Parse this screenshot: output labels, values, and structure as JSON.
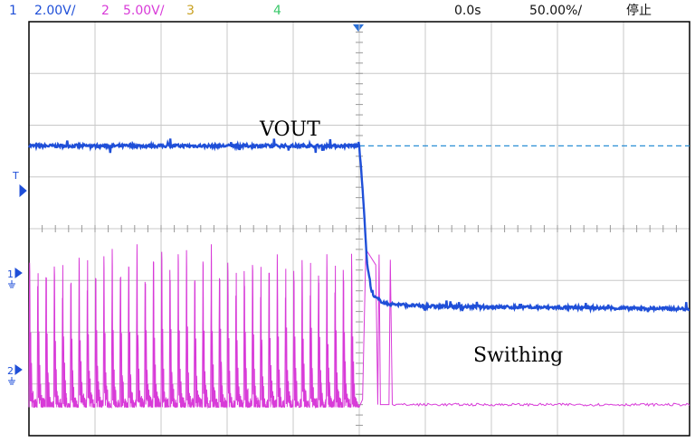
{
  "header": {
    "ch1": {
      "num": "1",
      "scale": "2.00V/",
      "color": "#1f4fd8"
    },
    "ch2": {
      "num": "2",
      "scale": "5.00V/",
      "color": "#d83bd8"
    },
    "ch3": {
      "num": "3",
      "color": "#c8a020"
    },
    "ch4": {
      "num": "4",
      "color": "#3ac86a"
    },
    "time_offset": "0.0s",
    "time_scale": "50.00%/",
    "status": "停止"
  },
  "colors": {
    "ch1": "#1f4fd8",
    "ch2": "#d83bd8",
    "trigger_level_line": "#2a8fd6",
    "grid": "#c8c8c8",
    "marker": "#1f4fd8"
  },
  "markers": {
    "trigger": "T",
    "ch1": "1",
    "ch2": "2"
  },
  "chart_data": {
    "type": "line",
    "x_divisions": 10,
    "y_divisions": 8,
    "trigger_x_div": 5,
    "annotations": [
      "VOUT",
      "Swithing"
    ],
    "series": [
      {
        "name": "VOUT",
        "channel": 1,
        "points_div": [
          [
            0,
            5.6
          ],
          [
            5.0,
            5.6
          ],
          [
            5.05,
            4.8
          ],
          [
            5.12,
            3.3
          ],
          [
            5.2,
            2.7
          ],
          [
            5.4,
            2.55
          ],
          [
            6.0,
            2.5
          ],
          [
            10,
            2.45
          ]
        ],
        "trigger_level_div": 5.6
      },
      {
        "name": "Swithing",
        "channel": 2,
        "burst_end_div": 5.0,
        "pulse_count": 40,
        "high_div": 3.7,
        "low_div": 0.55,
        "off_level_div": 0.6
      }
    ]
  }
}
